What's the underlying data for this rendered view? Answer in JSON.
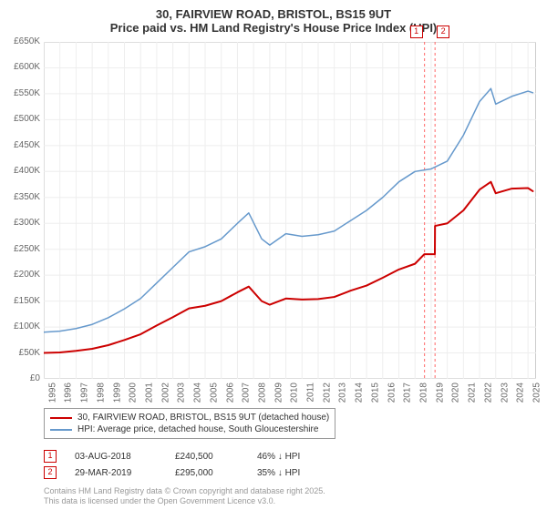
{
  "title": {
    "line1": "30, FAIRVIEW ROAD, BRISTOL, BS15 9UT",
    "line2": "Price paid vs. HM Land Registry's House Price Index (HPI)",
    "fontsize": 13,
    "color": "#333333"
  },
  "chart": {
    "type": "line",
    "background_color": "#ffffff",
    "grid_color": "#eeeeee",
    "border_color": "#cccccc",
    "x": {
      "min": 1995,
      "max": 2025.5,
      "ticks": [
        1995,
        1996,
        1997,
        1998,
        1999,
        2000,
        2001,
        2002,
        2003,
        2004,
        2005,
        2006,
        2007,
        2008,
        2009,
        2010,
        2011,
        2012,
        2013,
        2014,
        2015,
        2016,
        2017,
        2018,
        2019,
        2020,
        2021,
        2022,
        2023,
        2024,
        2025
      ],
      "tick_labels": [
        "1995",
        "1996",
        "1997",
        "1998",
        "1999",
        "2000",
        "2001",
        "2002",
        "2003",
        "2004",
        "2005",
        "2006",
        "2007",
        "2008",
        "2009",
        "2010",
        "2011",
        "2012",
        "2013",
        "2014",
        "2015",
        "2016",
        "2017",
        "2018",
        "2019",
        "2020",
        "2021",
        "2022",
        "2023",
        "2024",
        "2025"
      ],
      "label_fontsize": 10,
      "label_color": "#666666",
      "rotation": -90
    },
    "y": {
      "min": 0,
      "max": 650000,
      "ticks": [
        0,
        50000,
        100000,
        150000,
        200000,
        250000,
        300000,
        350000,
        400000,
        450000,
        500000,
        550000,
        600000,
        650000
      ],
      "tick_labels": [
        "£0",
        "£50K",
        "£100K",
        "£150K",
        "£200K",
        "£250K",
        "£300K",
        "£350K",
        "£400K",
        "£450K",
        "£500K",
        "£550K",
        "£600K",
        "£650K"
      ],
      "label_fontsize": 10,
      "label_color": "#666666"
    },
    "series": [
      {
        "name": "hpi",
        "label": "HPI: Average price, detached house, South Gloucestershire",
        "color": "#6699cc",
        "line_width": 1.5,
        "data": [
          [
            1995,
            90000
          ],
          [
            1996,
            92000
          ],
          [
            1997,
            97000
          ],
          [
            1998,
            105000
          ],
          [
            1999,
            118000
          ],
          [
            2000,
            135000
          ],
          [
            2001,
            155000
          ],
          [
            2002,
            185000
          ],
          [
            2003,
            215000
          ],
          [
            2004,
            245000
          ],
          [
            2005,
            255000
          ],
          [
            2006,
            270000
          ],
          [
            2007,
            300000
          ],
          [
            2007.7,
            320000
          ],
          [
            2008.5,
            270000
          ],
          [
            2009,
            258000
          ],
          [
            2010,
            280000
          ],
          [
            2011,
            275000
          ],
          [
            2012,
            278000
          ],
          [
            2013,
            285000
          ],
          [
            2014,
            305000
          ],
          [
            2015,
            325000
          ],
          [
            2016,
            350000
          ],
          [
            2017,
            380000
          ],
          [
            2018,
            400000
          ],
          [
            2019,
            405000
          ],
          [
            2020,
            420000
          ],
          [
            2021,
            470000
          ],
          [
            2022,
            535000
          ],
          [
            2022.7,
            560000
          ],
          [
            2023,
            530000
          ],
          [
            2024,
            545000
          ],
          [
            2025,
            555000
          ],
          [
            2025.3,
            552000
          ]
        ]
      },
      {
        "name": "price_paid",
        "label": "30, FAIRVIEW ROAD, BRISTOL, BS15 9UT (detached house)",
        "color": "#cc0000",
        "line_width": 2,
        "data": [
          [
            1995,
            50000
          ],
          [
            1996,
            51000
          ],
          [
            1997,
            54000
          ],
          [
            1998,
            58000
          ],
          [
            1999,
            65000
          ],
          [
            2000,
            75000
          ],
          [
            2001,
            86000
          ],
          [
            2002,
            103000
          ],
          [
            2003,
            119000
          ],
          [
            2004,
            136000
          ],
          [
            2005,
            141000
          ],
          [
            2006,
            150000
          ],
          [
            2007,
            167000
          ],
          [
            2007.7,
            178000
          ],
          [
            2008.5,
            150000
          ],
          [
            2009,
            143000
          ],
          [
            2010,
            155000
          ],
          [
            2011,
            153000
          ],
          [
            2012,
            154000
          ],
          [
            2013,
            158000
          ],
          [
            2014,
            170000
          ],
          [
            2015,
            180000
          ],
          [
            2016,
            195000
          ],
          [
            2017,
            211000
          ],
          [
            2018,
            222000
          ],
          [
            2018.58,
            240500
          ],
          [
            2018.59,
            240500
          ],
          [
            2019.23,
            240500
          ],
          [
            2019.24,
            295000
          ],
          [
            2020,
            300000
          ],
          [
            2021,
            325000
          ],
          [
            2022,
            365000
          ],
          [
            2022.7,
            380000
          ],
          [
            2023,
            358000
          ],
          [
            2024,
            367000
          ],
          [
            2025,
            368000
          ],
          [
            2025.3,
            362000
          ]
        ]
      }
    ],
    "markers": [
      {
        "num": "1",
        "x": 2018.59,
        "box_color": "#cc0000"
      },
      {
        "num": "2",
        "x": 2019.24,
        "box_color": "#cc0000"
      }
    ],
    "vline_color": "#ff6666",
    "vline_dash": "3,3"
  },
  "legend": {
    "border_color": "#999999",
    "fontsize": 10,
    "items": [
      {
        "color": "#cc0000",
        "label": "30, FAIRVIEW ROAD, BRISTOL, BS15 9UT (detached house)"
      },
      {
        "color": "#6699cc",
        "label": "HPI: Average price, detached house, South Gloucestershire"
      }
    ]
  },
  "transactions": [
    {
      "num": "1",
      "box_color": "#cc0000",
      "date": "03-AUG-2018",
      "price": "£240,500",
      "delta": "46% ↓ HPI"
    },
    {
      "num": "2",
      "box_color": "#cc0000",
      "date": "29-MAR-2019",
      "price": "£295,000",
      "delta": "35% ↓ HPI"
    }
  ],
  "footer": {
    "line1": "Contains HM Land Registry data © Crown copyright and database right 2025.",
    "line2": "This data is licensed under the Open Government Licence v3.0.",
    "color": "#999999",
    "fontsize": 9
  }
}
